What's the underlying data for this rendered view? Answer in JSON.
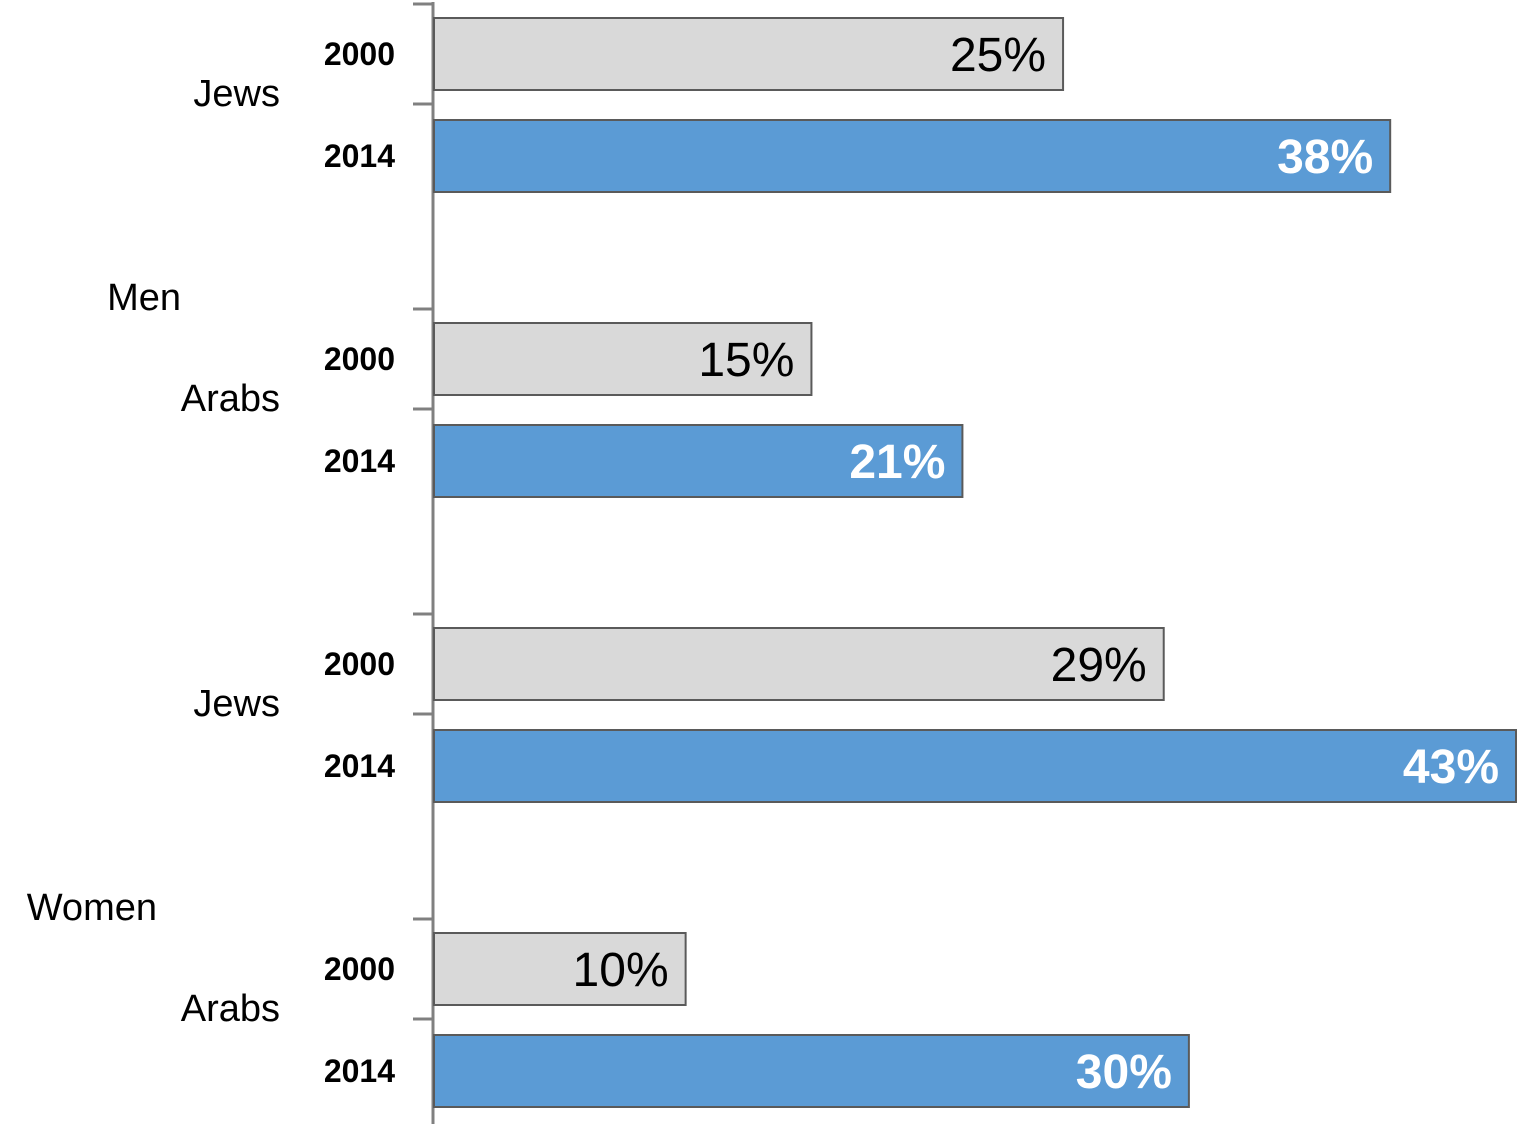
{
  "chart_data": {
    "type": "bar",
    "orientation": "horizontal",
    "value_format": "percent",
    "groups": [
      {
        "sex": "Men",
        "subgroups": [
          {
            "name": "Jews",
            "bars": [
              {
                "year": "2000",
                "value": 25,
                "label": "25%"
              },
              {
                "year": "2014",
                "value": 38,
                "label": "38%"
              }
            ]
          },
          {
            "name": "Arabs",
            "bars": [
              {
                "year": "2000",
                "value": 15,
                "label": "15%"
              },
              {
                "year": "2014",
                "value": 21,
                "label": "21%"
              }
            ]
          }
        ]
      },
      {
        "sex": "Women",
        "subgroups": [
          {
            "name": "Jews",
            "bars": [
              {
                "year": "2000",
                "value": 29,
                "label": "29%"
              },
              {
                "year": "2014",
                "value": 43,
                "label": "43%"
              }
            ]
          },
          {
            "name": "Arabs",
            "bars": [
              {
                "year": "2000",
                "value": 10,
                "label": "10%"
              },
              {
                "year": "2014",
                "value": 30,
                "label": "30%"
              }
            ]
          }
        ]
      }
    ],
    "xlim": [
      0,
      43
    ],
    "grid": false,
    "legend": "none",
    "colors": {
      "2000": "#d9d9d9",
      "2014": "#5b9bd5",
      "bar_border": "#5a5a5a",
      "axis": "#808080"
    }
  }
}
